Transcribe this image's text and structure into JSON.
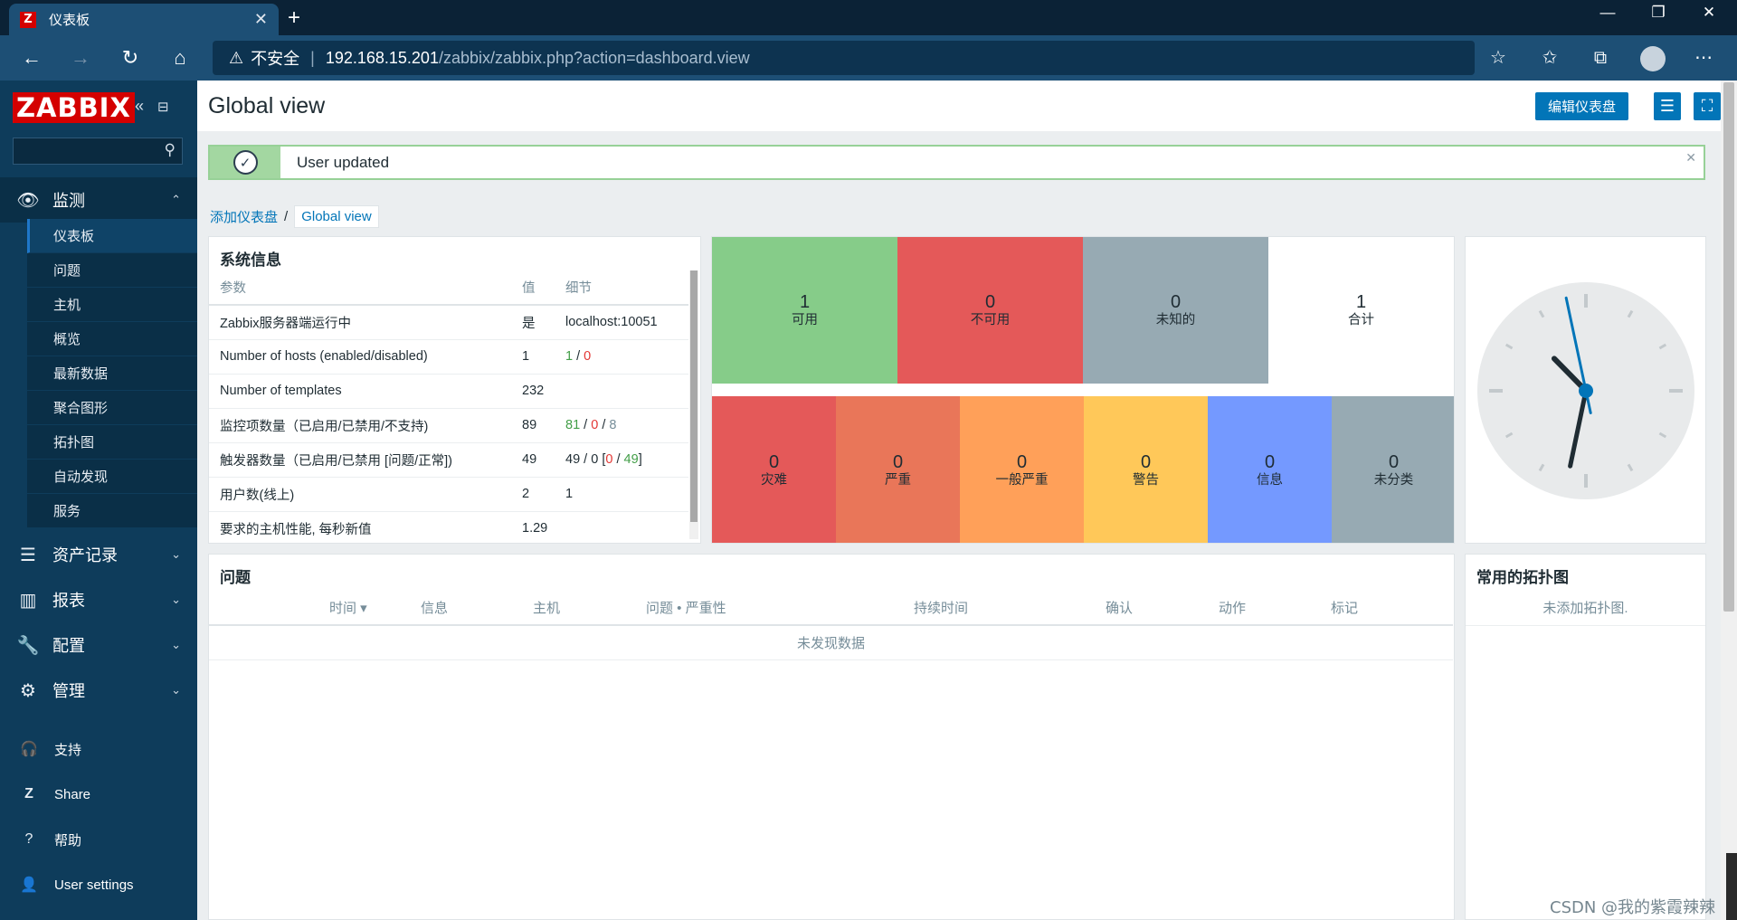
{
  "browser": {
    "tab_title": "仪表板",
    "tab_favicon": "Z",
    "url_warning": "不安全",
    "url_host": "192.168.15.201",
    "url_path": "/zabbix/zabbix.php?action=dashboard.view"
  },
  "sidebar": {
    "logo": "ZABBIX",
    "search_placeholder": "",
    "monitoring_label": "监测",
    "monitoring_items": [
      "仪表板",
      "问题",
      "主机",
      "概览",
      "最新数据",
      "聚合图形",
      "拓扑图",
      "自动发现",
      "服务"
    ],
    "sections": [
      "资产记录",
      "报表",
      "配置",
      "管理"
    ],
    "footer": [
      "支持",
      "Share",
      "帮助",
      "User settings"
    ]
  },
  "header": {
    "title": "Global view",
    "edit_button": "编辑仪表盘"
  },
  "message": {
    "text": "User updated"
  },
  "breadcrumb": {
    "parent": "添加仪表盘",
    "current": "Global view"
  },
  "system_info": {
    "title": "系统信息",
    "columns": [
      "参数",
      "值",
      "细节"
    ],
    "rows": [
      {
        "param": "Zabbix服务器端运行中",
        "value": "是",
        "detail": "localhost:10051"
      },
      {
        "param": "Number of hosts (enabled/disabled)",
        "value": "1",
        "d1": "1",
        "d2": "0"
      },
      {
        "param": "Number of templates",
        "value": "232"
      },
      {
        "param": "监控项数量（已启用/已禁用/不支持)",
        "value": "89",
        "d1": "81",
        "d2": "0",
        "d3": "8"
      },
      {
        "param": "触发器数量（已启用/已禁用 [问题/正常])",
        "value": "49",
        "d1": "49",
        "d2": "0",
        "d3": "0",
        "d4": "49"
      },
      {
        "param": "用户数(线上)",
        "value": "2",
        "d1": "1"
      },
      {
        "param": "要求的主机性能, 每秒新值",
        "value": "1.29"
      }
    ]
  },
  "host_availability": [
    {
      "num": "1",
      "label": "可用",
      "color": "#86cc89"
    },
    {
      "num": "0",
      "label": "不可用",
      "color": "#e45959"
    },
    {
      "num": "0",
      "label": "未知的",
      "color": "#97aab3"
    },
    {
      "num": "1",
      "label": "合计",
      "color": "#ffffff"
    }
  ],
  "problems_by_severity": [
    {
      "num": "0",
      "label": "灾难",
      "color": "#e45959"
    },
    {
      "num": "0",
      "label": "严重",
      "color": "#e97659"
    },
    {
      "num": "0",
      "label": "一般严重",
      "color": "#ffa059"
    },
    {
      "num": "0",
      "label": "警告",
      "color": "#ffc859"
    },
    {
      "num": "0",
      "label": "信息",
      "color": "#7499ff"
    },
    {
      "num": "0",
      "label": "未分类",
      "color": "#97aab3"
    }
  ],
  "problems": {
    "title": "问题",
    "columns": [
      "时间 ▾",
      "信息",
      "主机",
      "问题 • 严重性",
      "持续时间",
      "确认",
      "动作",
      "标记"
    ],
    "empty": "未发现数据"
  },
  "maps": {
    "title": "常用的拓扑图",
    "empty": "未添加拓扑图."
  },
  "clock": {
    "hour": 10,
    "minute": 31,
    "second": 58
  },
  "watermark": "CSDN @我的紫霞辣辣"
}
